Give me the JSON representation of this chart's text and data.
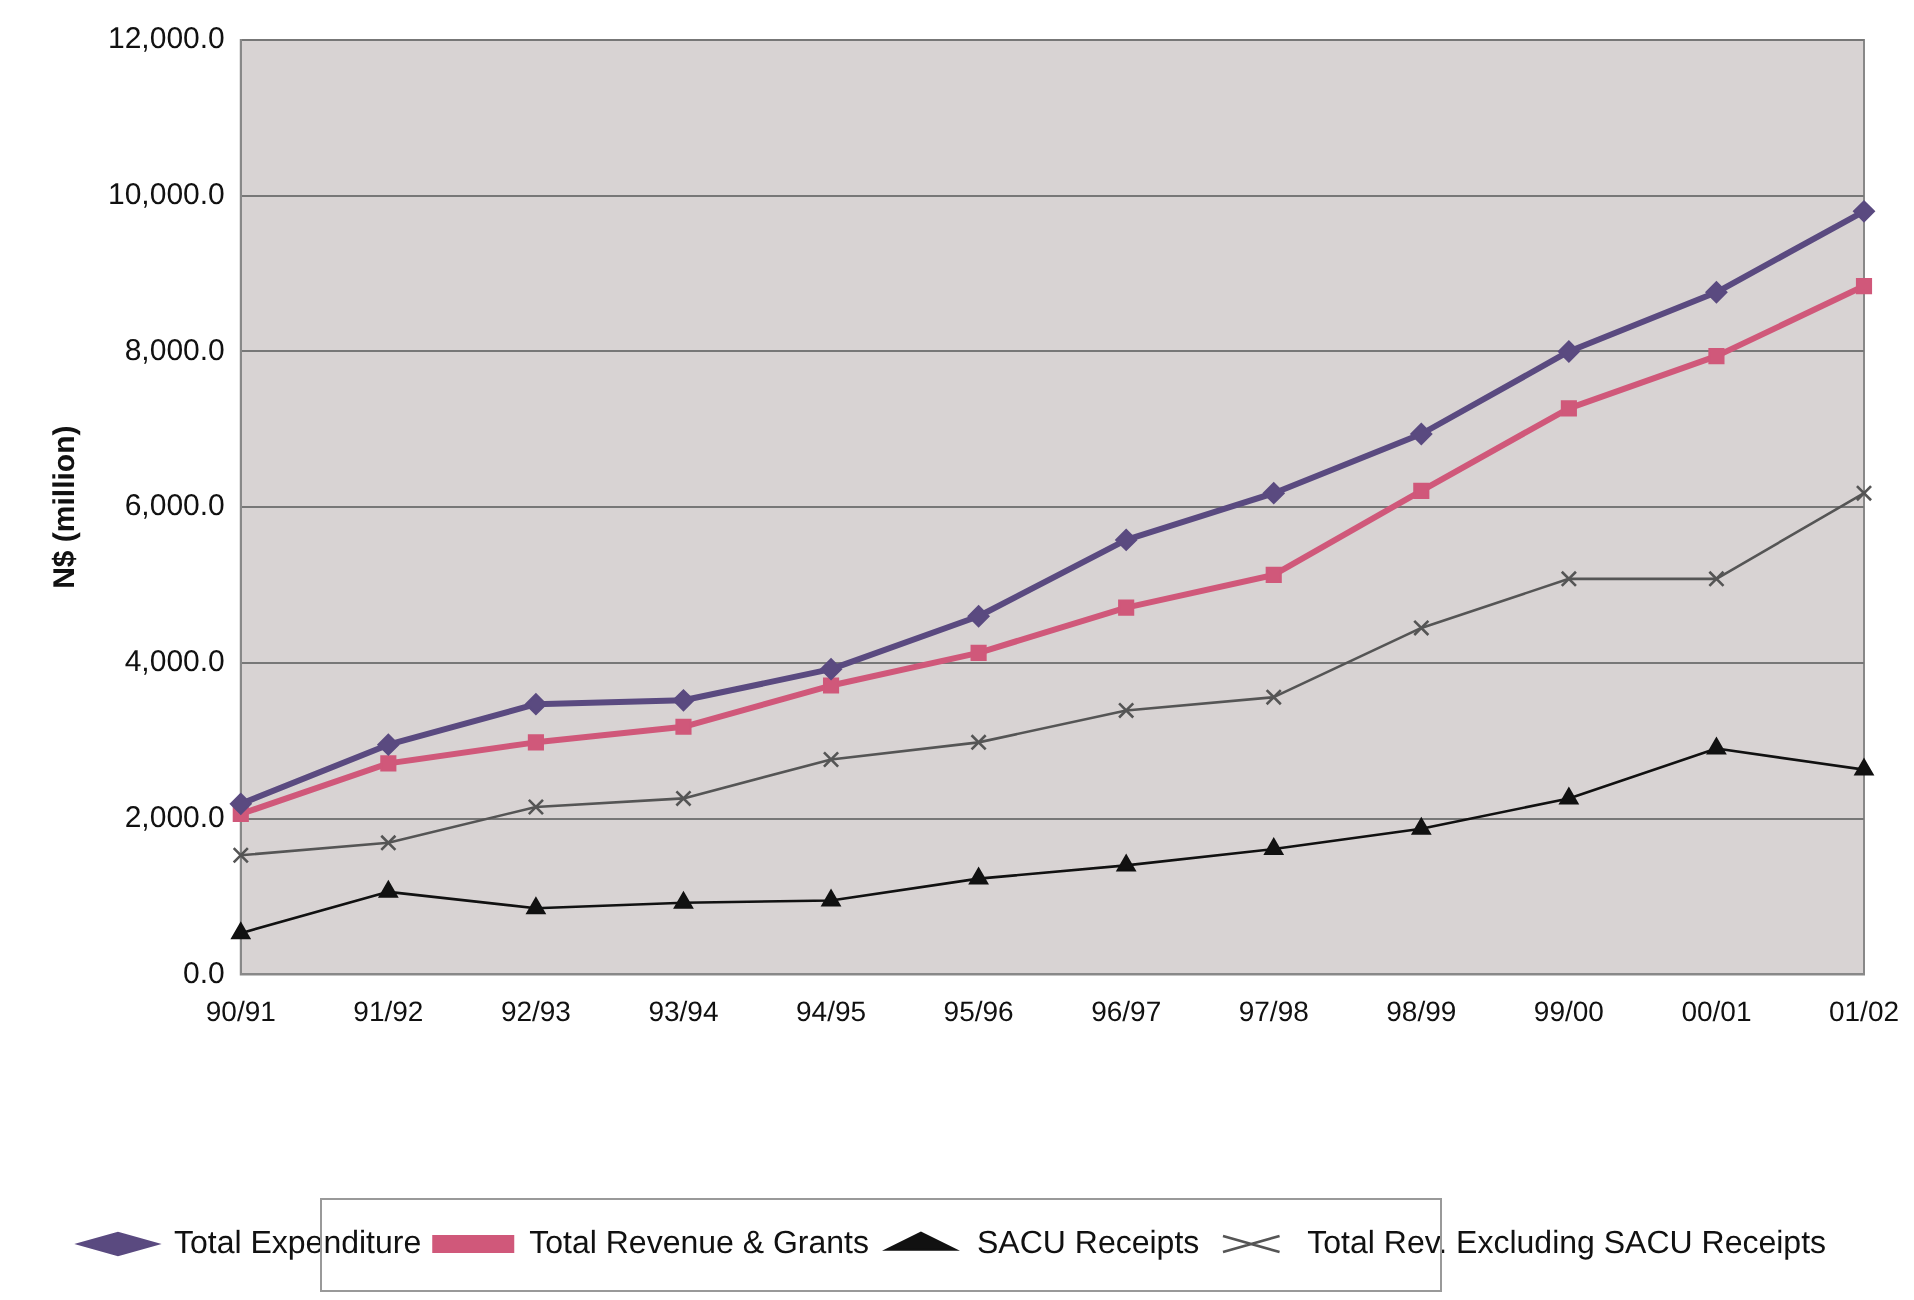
{
  "chart_data": {
    "type": "line",
    "ylabel": "N$ (million)",
    "categories": [
      "90/91",
      "91/92",
      "92/93",
      "93/94",
      "94/95",
      "95/96",
      "96/97",
      "97/98",
      "98/99",
      "99/00",
      "00/01",
      "01/02"
    ],
    "series": [
      {
        "name": "Total Expenditure",
        "color": "#5a4a80",
        "marker": "diamond",
        "values": [
          2190,
          2950,
          3470,
          3520,
          3920,
          4600,
          5580,
          6180,
          6940,
          8000,
          8760,
          9800
        ]
      },
      {
        "name": "Total Revenue & Grants",
        "color": "#d0587a",
        "marker": "square",
        "values": [
          2060,
          2710,
          2980,
          3180,
          3710,
          4130,
          4710,
          5130,
          6210,
          7270,
          7940,
          8840
        ]
      },
      {
        "name": "SACU Receipts",
        "color": "#111111",
        "marker": "triangle",
        "values": [
          530,
          1060,
          850,
          920,
          950,
          1230,
          1400,
          1610,
          1870,
          2260,
          2900,
          2630
        ]
      },
      {
        "name": "Total Rev. Excluding SACU Receipts",
        "color": "#555555",
        "marker": "cross",
        "values": [
          1530,
          1690,
          2150,
          2260,
          2760,
          2980,
          3390,
          3560,
          4450,
          5080,
          5080,
          6180
        ]
      }
    ],
    "ylim": [
      0,
      12000
    ],
    "yticks": [
      {
        "value": 0,
        "label": "0.0"
      },
      {
        "value": 2000,
        "label": "2,000.0"
      },
      {
        "value": 4000,
        "label": "4,000.0"
      },
      {
        "value": 6000,
        "label": "6,000.0"
      },
      {
        "value": 8000,
        "label": "8,000.0"
      },
      {
        "value": 10000,
        "label": "10,000.0"
      },
      {
        "value": 12000,
        "label": "12,000.0"
      }
    ],
    "grid": "y",
    "legend": "bottom",
    "line_style": "solid"
  }
}
